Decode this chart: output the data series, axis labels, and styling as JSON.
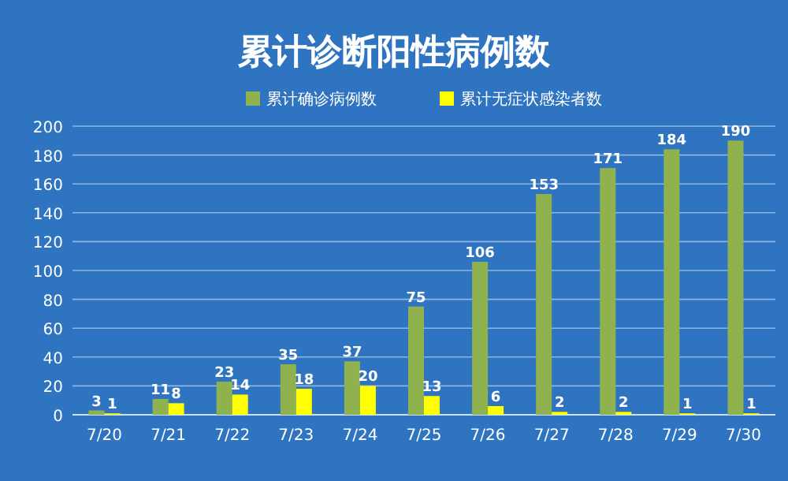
{
  "chart_data": {
    "type": "bar",
    "title": "累计诊断阳性病例数",
    "categories": [
      "7/20",
      "7/21",
      "7/22",
      "7/23",
      "7/24",
      "7/25",
      "7/26",
      "7/27",
      "7/28",
      "7/29",
      "7/30"
    ],
    "series": [
      {
        "name": "累计确诊病例数",
        "color": "#8fb24f",
        "values": [
          3,
          11,
          23,
          35,
          37,
          75,
          106,
          153,
          171,
          184,
          190
        ]
      },
      {
        "name": "累计无症状感染者数",
        "color": "#ffff00",
        "values": [
          1,
          8,
          14,
          18,
          20,
          13,
          6,
          2,
          2,
          1,
          1
        ]
      }
    ],
    "ylim": [
      0,
      200
    ],
    "yticks": [
      0,
      20,
      40,
      60,
      80,
      100,
      120,
      140,
      160,
      180,
      200
    ],
    "grid": "y",
    "legend": "top",
    "data_labels": true
  }
}
